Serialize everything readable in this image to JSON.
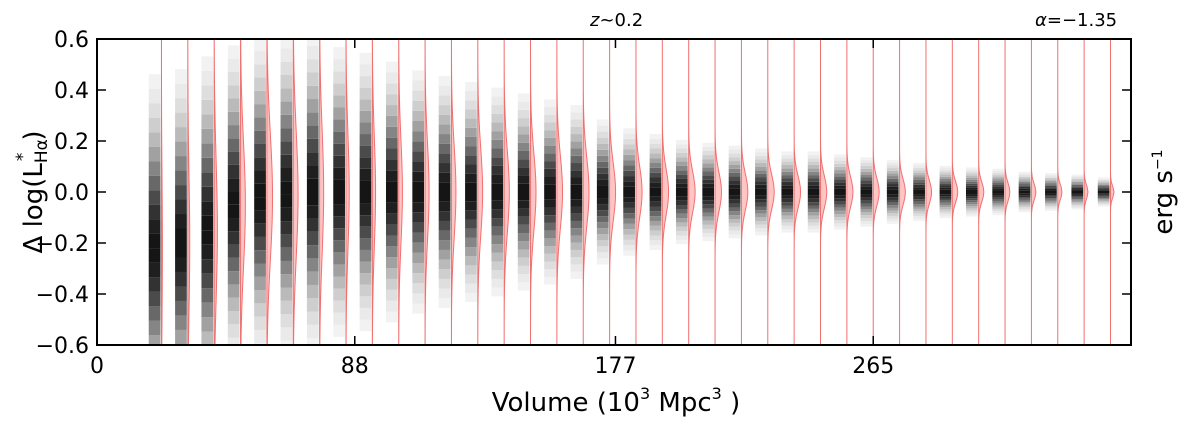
{
  "chart_data": {
    "type": "violin",
    "annotations": {
      "redshift": {
        "symbol": "z",
        "text": "~0.2"
      },
      "alpha": {
        "symbol": "α",
        "text": "=−1.35"
      },
      "right_axis_label": {
        "main": "erg s",
        "sup": "−1"
      }
    },
    "xlabel": {
      "main": "Volume (10",
      "sup1": "3",
      "mid": "  Mpc",
      "sup2": "3",
      "end": " )"
    },
    "ylabel": {
      "pre": "Δ log(L",
      "sup": "*",
      "sub": "Hα",
      "end": ")"
    },
    "xlim": [
      0,
      353
    ],
    "ylim": [
      -0.6,
      0.6
    ],
    "x_ticks": [
      0,
      88,
      177,
      265
    ],
    "x_tick_labels": [
      "0",
      "88",
      "177",
      "265"
    ],
    "y_ticks": [
      -0.6,
      -0.4,
      -0.2,
      0.0,
      0.2,
      0.4,
      0.6
    ],
    "y_tick_labels": [
      "−0.6",
      "−0.4",
      "−0.2",
      "0.0",
      "0.2",
      "0.4",
      "0.6"
    ],
    "series": [
      {
        "violin_color": "#ffb0b0",
        "violin_edge_color": "#f07070",
        "box_color": "#000000",
        "violins": [
          {
            "x": 22,
            "half_width": 0.6
          },
          {
            "x": 31,
            "half_width": 1.2
          },
          {
            "x": 40,
            "half_width": 2.0
          },
          {
            "x": 49,
            "half_width": 3.0
          },
          {
            "x": 58,
            "half_width": 3.5
          },
          {
            "x": 67,
            "half_width": 3.0
          },
          {
            "x": 76,
            "half_width": 2.5
          },
          {
            "x": 85,
            "half_width": 2.0
          },
          {
            "x": 94,
            "half_width": 2.0
          },
          {
            "x": 103,
            "half_width": 2.3
          },
          {
            "x": 112,
            "half_width": 2.5
          },
          {
            "x": 121,
            "half_width": 2.8
          },
          {
            "x": 130,
            "half_width": 3.0
          },
          {
            "x": 139,
            "half_width": 3.2
          },
          {
            "x": 148,
            "half_width": 3.4
          },
          {
            "x": 157,
            "half_width": 3.5
          },
          {
            "x": 166,
            "half_width": 3.6
          },
          {
            "x": 175,
            "half_width": 3.7
          },
          {
            "x": 184,
            "half_width": 3.8
          },
          {
            "x": 193,
            "half_width": 3.9
          },
          {
            "x": 202,
            "half_width": 4.0
          },
          {
            "x": 211,
            "half_width": 4.0
          },
          {
            "x": 220,
            "half_width": 4.0
          },
          {
            "x": 229,
            "half_width": 4.0
          },
          {
            "x": 238,
            "half_width": 4.0
          },
          {
            "x": 247,
            "half_width": 3.9
          },
          {
            "x": 256,
            "half_width": 3.8
          },
          {
            "x": 265,
            "half_width": 3.7
          },
          {
            "x": 274,
            "half_width": 3.6
          },
          {
            "x": 283,
            "half_width": 3.5
          },
          {
            "x": 292,
            "half_width": 3.4
          },
          {
            "x": 301,
            "half_width": 3.2
          },
          {
            "x": 310,
            "half_width": 3.0
          },
          {
            "x": 319,
            "half_width": 2.8
          },
          {
            "x": 328,
            "half_width": 2.6
          },
          {
            "x": 337,
            "half_width": 2.4
          },
          {
            "x": 346,
            "half_width": 2.2
          }
        ],
        "spread": [
          0.6,
          0.6,
          0.6,
          0.55,
          0.55,
          0.55,
          0.55,
          0.5,
          0.48,
          0.45,
          0.42,
          0.4,
          0.38,
          0.36,
          0.34,
          0.32,
          0.3,
          0.25,
          0.22,
          0.2,
          0.18,
          0.17,
          0.16,
          0.15,
          0.14,
          0.14,
          0.13,
          0.12,
          0.11,
          0.1,
          0.09,
          0.085,
          0.08,
          0.07,
          0.065,
          0.06,
          0.05
        ],
        "center": [
          -0.22,
          -0.2,
          -0.15,
          -0.05,
          -0.02,
          -0.01,
          0.0,
          0.0,
          0.0,
          0.0,
          0.0,
          0.0,
          0.0,
          0.0,
          0.0,
          0.0,
          0.0,
          0.0,
          0.0,
          0.0,
          0.0,
          0.0,
          0.0,
          0.0,
          0.0,
          0.0,
          0.0,
          0.0,
          0.0,
          0.0,
          0.0,
          0.0,
          0.0,
          0.0,
          0.0,
          0.0,
          0.0
        ]
      }
    ]
  }
}
